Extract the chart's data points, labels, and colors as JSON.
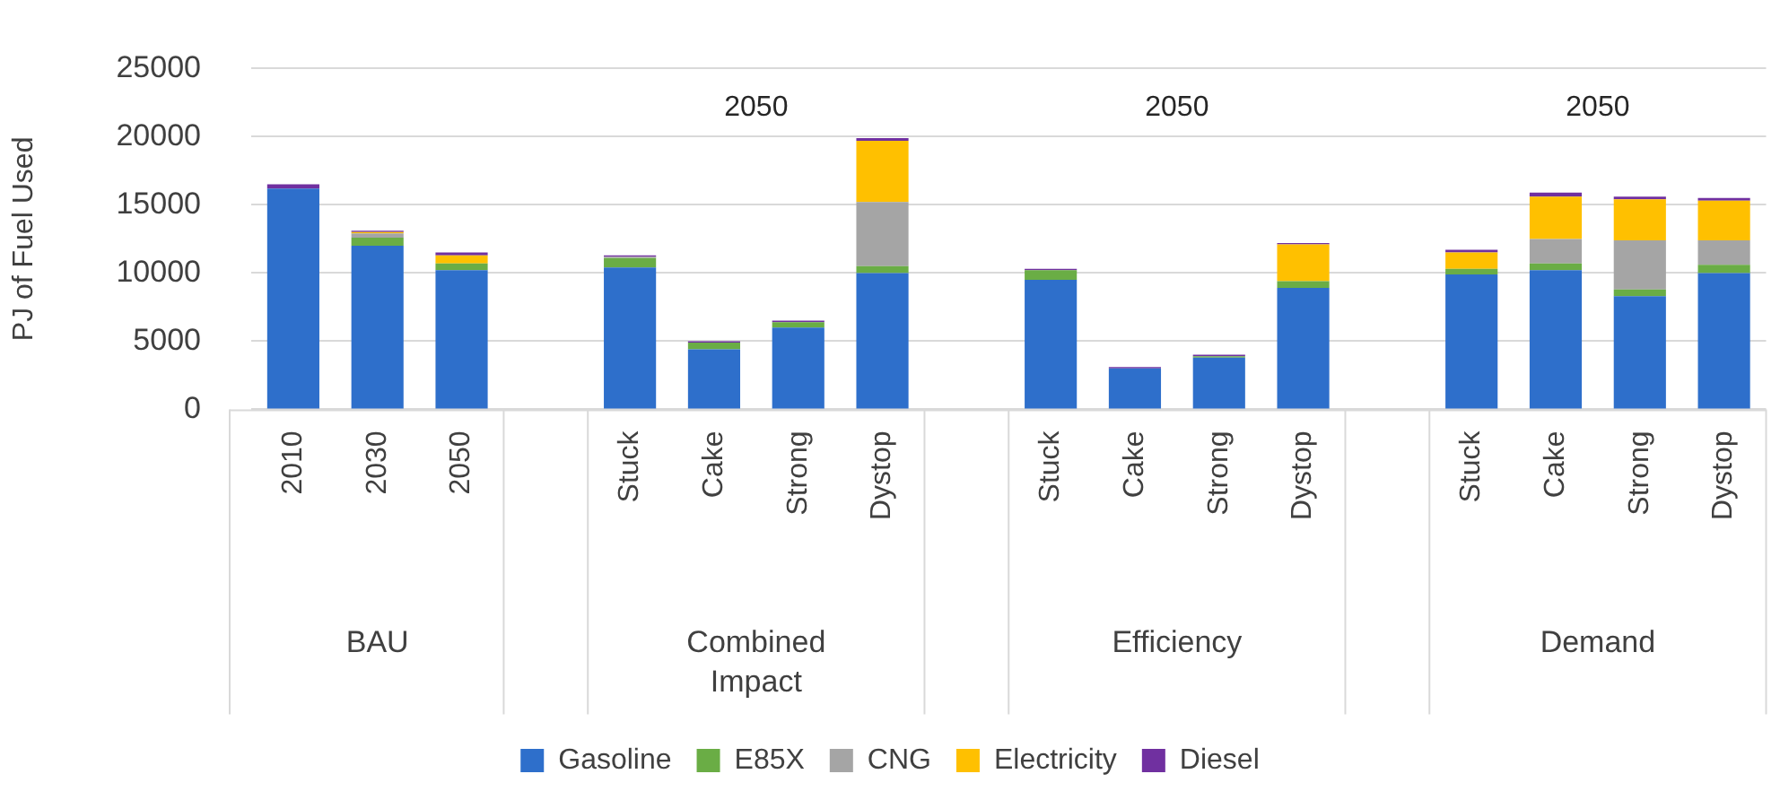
{
  "chart_data": {
    "type": "bar",
    "stacked": true,
    "ylabel": "PJ of Fuel Used",
    "categories": [
      "2010",
      "2030",
      "2050",
      null,
      "Stuck",
      "Cake",
      "Strong",
      "Dystop",
      null,
      "Stuck",
      "Cake",
      "Strong",
      "Dystop",
      null,
      "Stuck",
      "Cake",
      "Strong",
      "Dystop"
    ],
    "series": [
      {
        "name": "Gasoline",
        "color": "#2e6fcb",
        "values": [
          16200,
          12000,
          10200,
          null,
          10400,
          4400,
          6000,
          10000,
          null,
          9500,
          3000,
          3800,
          8900,
          null,
          9900,
          10200,
          8300,
          10000
        ]
      },
      {
        "name": "E85X",
        "color": "#6aad45",
        "values": [
          0,
          600,
          500,
          null,
          700,
          500,
          400,
          500,
          null,
          700,
          0,
          100,
          500,
          null,
          400,
          500,
          500,
          600
        ]
      },
      {
        "name": "CNG",
        "color": "#a5a5a5",
        "values": [
          null,
          300,
          null,
          null,
          100,
          0,
          0,
          4700,
          null,
          0,
          0,
          0,
          0,
          null,
          null,
          1800,
          3600,
          1800
        ]
      },
      {
        "name": "Electricity",
        "color": "#ffc000",
        "values": [
          0,
          100,
          600,
          null,
          0,
          0,
          0,
          4500,
          null,
          0,
          0,
          0,
          2700,
          null,
          1200,
          3100,
          3000,
          2900
        ]
      },
      {
        "name": "Diesel",
        "color": "#7030a0",
        "values": [
          300,
          100,
          200,
          null,
          100,
          100,
          100,
          200,
          null,
          100,
          100,
          100,
          100,
          null,
          200,
          300,
          200,
          200
        ]
      }
    ],
    "ylim": [
      0,
      25000
    ],
    "yticks": [
      0,
      5000,
      10000,
      15000,
      20000,
      25000
    ],
    "grid": "y",
    "legend": "bottom",
    "annotations": [
      "2050",
      "2050",
      "2050",
      "BAU",
      "Combined Impact",
      "Efficiency",
      "Demand"
    ]
  }
}
